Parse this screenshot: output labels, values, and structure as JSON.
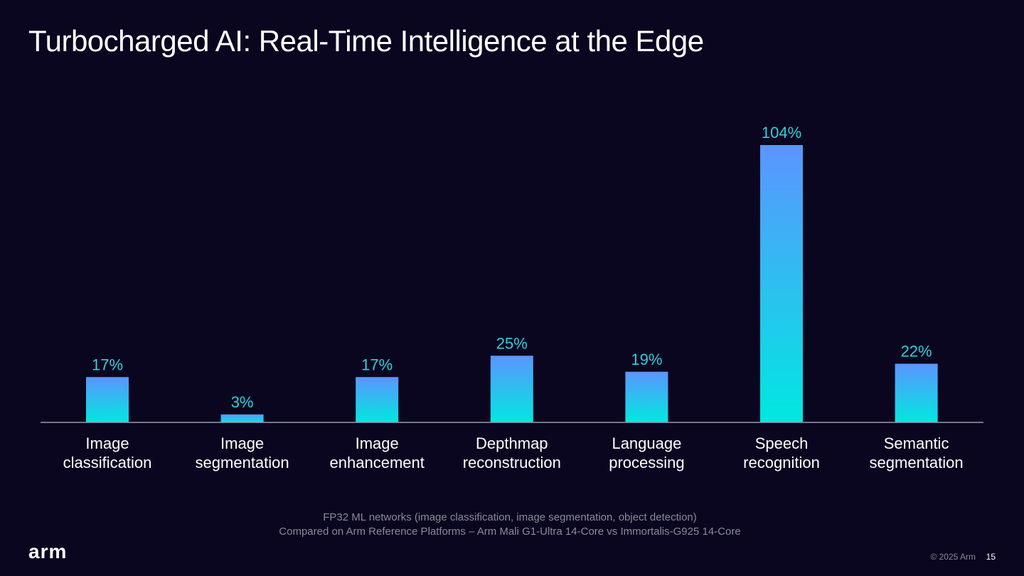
{
  "slide": {
    "title": "Turbocharged AI: Real-Time Intelligence at the Edge",
    "footnote_line1": "FP32 ML networks (image classification, image segmentation, object detection)",
    "footnote_line2": "Compared on Arm Reference Platforms – Arm Mali G1-Ultra 14-Core vs Immortalis-G925 14-Core",
    "logo_text": "arm",
    "copyright": "© 2025 Arm",
    "page_number": "15"
  },
  "colors": {
    "background": "#0a0620",
    "bar_top": "#5b95ff",
    "bar_bottom": "#00e8e0",
    "value_label": "#2fd0dc",
    "axis": "#9a9aa8"
  },
  "chart_data": {
    "type": "bar",
    "title": "",
    "xlabel": "",
    "ylabel": "",
    "ylim": [
      0,
      104
    ],
    "categories": [
      [
        "Image",
        "classification"
      ],
      [
        "Image",
        "segmentation"
      ],
      [
        "Image",
        "enhancement"
      ],
      [
        "Depthmap",
        "reconstruction"
      ],
      [
        "Language",
        "processing"
      ],
      [
        "Speech",
        "recognition"
      ],
      [
        "Semantic",
        "segmentation"
      ]
    ],
    "values": [
      17,
      3,
      17,
      25,
      19,
      104,
      22
    ],
    "value_labels": [
      "17%",
      "3%",
      "17%",
      "25%",
      "19%",
      "104%",
      "22%"
    ],
    "unit": "%"
  }
}
